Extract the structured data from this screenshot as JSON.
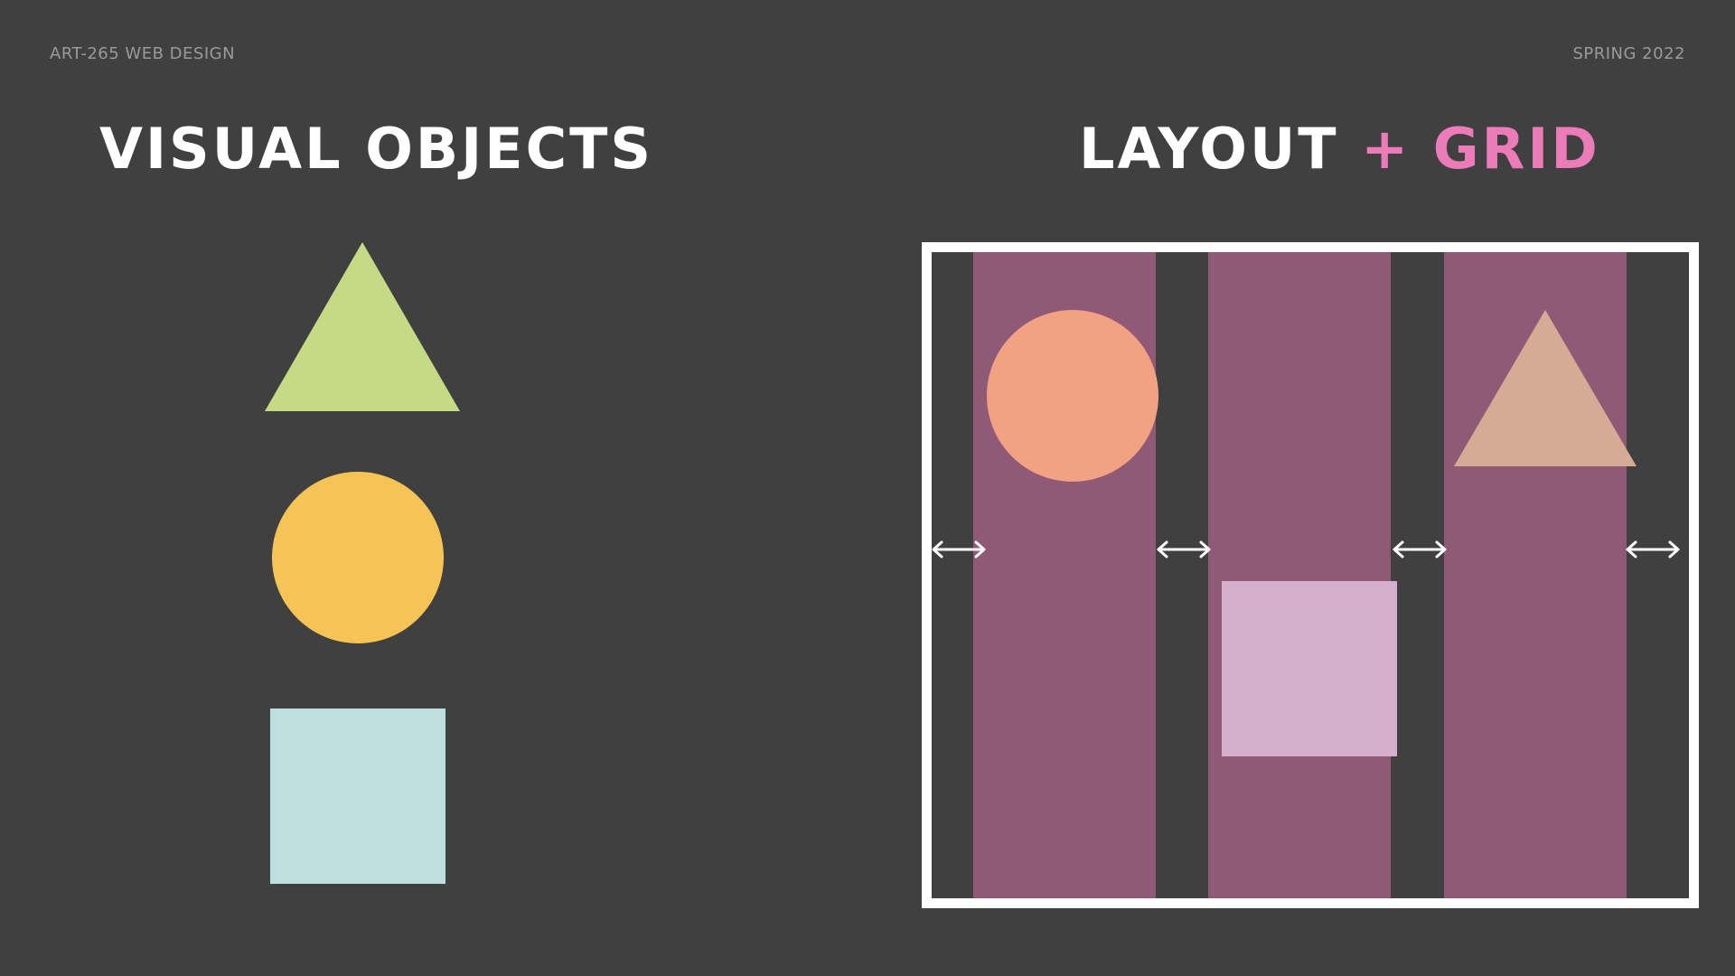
{
  "header": {
    "course": "ART-265 WEB DESIGN",
    "term": "SPRING 2022"
  },
  "left_panel": {
    "title": "VISUAL OBJECTS",
    "shapes": [
      {
        "kind": "triangle",
        "color": "#c4da84"
      },
      {
        "kind": "circle",
        "color": "#f5c455"
      },
      {
        "kind": "square",
        "color": "#bde0df"
      }
    ]
  },
  "right_panel": {
    "title_main": "LAYOUT",
    "title_accent": "+ GRID",
    "accent_color": "#ec7bb9",
    "frame_color": "#ffffff",
    "column_color": "#905a77",
    "column_count": 3,
    "gutter_arrow_icon": "double-arrow-horizontal-icon",
    "shapes": [
      {
        "kind": "circle",
        "color": "#f2a283"
      },
      {
        "kind": "square",
        "color": "#d5b0cc"
      },
      {
        "kind": "triangle",
        "color": "#d6ab95"
      }
    ]
  }
}
